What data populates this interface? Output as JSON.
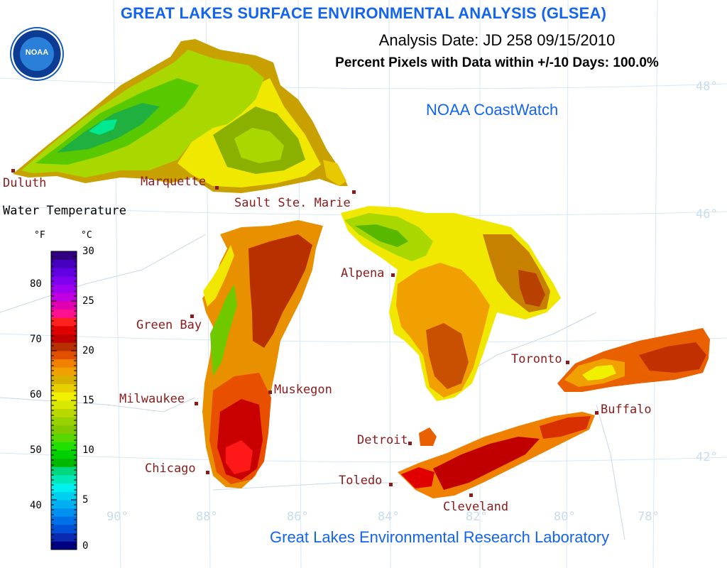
{
  "title": "GREAT LAKES SURFACE ENVIRONMENTAL ANALYSIS (GLSEA)",
  "analysis_date": "Analysis Date:  JD 258 09/15/2010",
  "percent_pixels": "Percent Pixels with Data within +/-10 Days: 100.0%",
  "coastwatch": "NOAA CoastWatch",
  "lab": "Great Lakes Environmental Research Laboratory",
  "logo_text": "NOAA",
  "legend": {
    "title": "Water Temperature",
    "unit_f": "°F",
    "unit_c": "°C",
    "f_ticks": [
      "80",
      "70",
      "60",
      "50",
      "40"
    ],
    "c_ticks": [
      "30",
      "25",
      "20",
      "15",
      "10",
      "5",
      "0"
    ],
    "colors": [
      "#000080",
      "#0a2ab0",
      "#0050d8",
      "#0070e8",
      "#0090f0",
      "#00b0f0",
      "#00d0f0",
      "#00f0f0",
      "#00e8b8",
      "#00d880",
      "#00b800",
      "#00d000",
      "#20e000",
      "#58d800",
      "#80c800",
      "#98d000",
      "#b8d800",
      "#d8e800",
      "#f0f000",
      "#e8d000",
      "#d8b000",
      "#f0a000",
      "#f08000",
      "#e05000",
      "#b83000",
      "#c00000",
      "#e00000",
      "#ff2020",
      "#ff1090",
      "#e000b0",
      "#c000e0",
      "#a000f0",
      "#8000f0",
      "#6000e0",
      "#4800c0",
      "#300080"
    ]
  },
  "cities": [
    {
      "name": "Duluth"
    },
    {
      "name": "Marquette"
    },
    {
      "name": "Sault Ste. Marie"
    },
    {
      "name": "Alpena"
    },
    {
      "name": "Green Bay"
    },
    {
      "name": "Toronto"
    },
    {
      "name": "Muskegon"
    },
    {
      "name": "Milwaukee"
    },
    {
      "name": "Buffalo"
    },
    {
      "name": "Detroit"
    },
    {
      "name": "Chicago"
    },
    {
      "name": "Toledo"
    },
    {
      "name": "Cleveland"
    }
  ],
  "lat_labels": [
    "48°",
    "46°",
    "42°"
  ],
  "lon_labels": [
    "90°",
    "88°",
    "86°",
    "84°",
    "82°",
    "80°",
    "78°"
  ],
  "lakes": [
    {
      "name": "Lake Superior",
      "colors": [
        "#8ab000",
        "#a8d800",
        "#58c800",
        "#20b040",
        "#00e890",
        "#f0e800",
        "#c8a000"
      ]
    },
    {
      "name": "Lake Michigan",
      "colors": [
        "#e89000",
        "#b83000",
        "#c80000",
        "#ff1818",
        "#e85000",
        "#70c800",
        "#f0e800"
      ]
    },
    {
      "name": "Lake Huron",
      "colors": [
        "#f0a000",
        "#c85000",
        "#a8d800",
        "#58b800",
        "#f0e800",
        "#b84000"
      ]
    },
    {
      "name": "Lake Erie",
      "colors": [
        "#c00000",
        "#f08000",
        "#e00000",
        "#d83000"
      ]
    },
    {
      "name": "Lake Ontario",
      "colors": [
        "#e86000",
        "#f0a000",
        "#f0f000",
        "#c03000"
      ]
    }
  ]
}
